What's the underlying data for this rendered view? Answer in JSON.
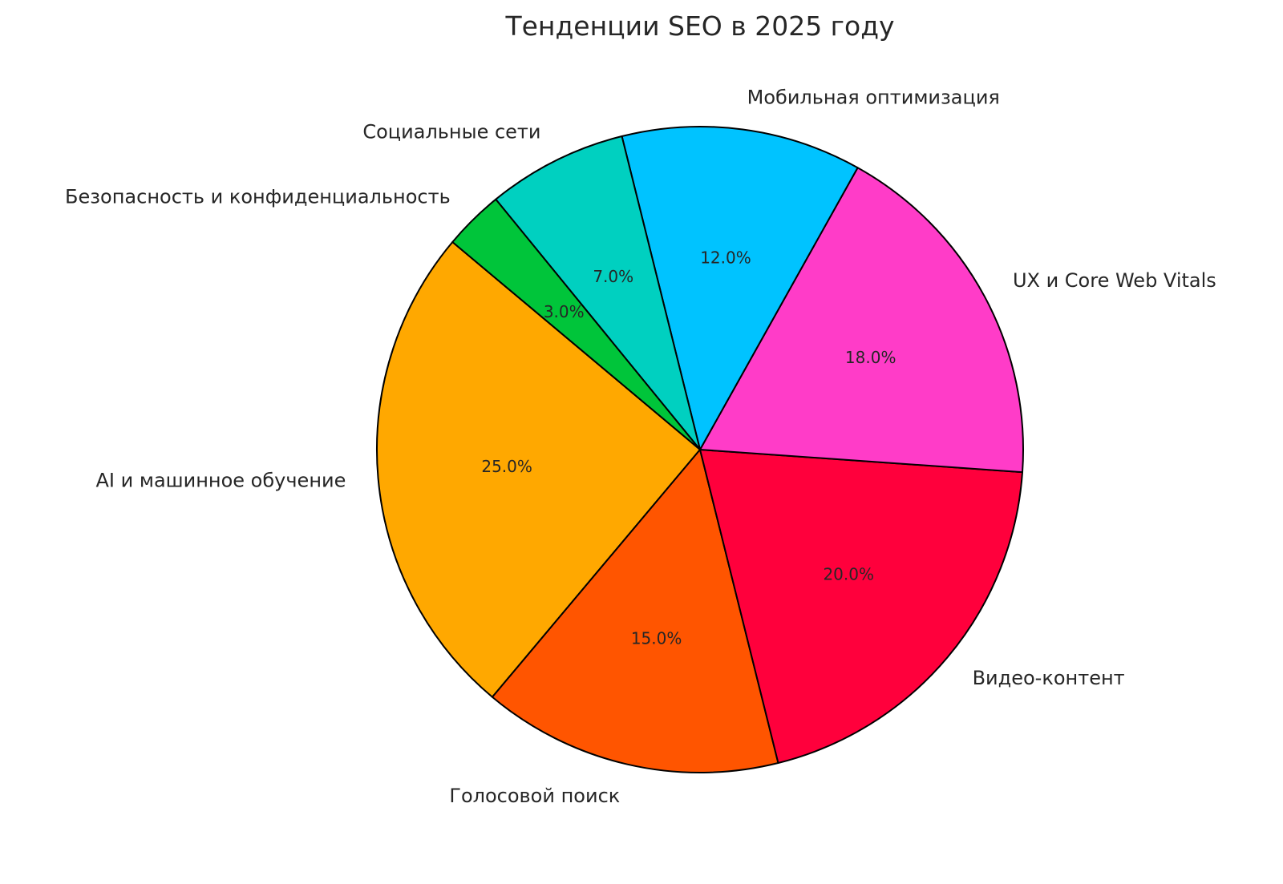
{
  "chart_data": {
    "type": "pie",
    "title": "Тенденции SEO в 2025 году",
    "start_angle_deg": 140,
    "direction": "counterclockwise",
    "label_format": "percent with one decimal",
    "categories": [
      "AI и машинное обучение",
      "Голосовой поиск",
      "Видео-контент",
      "UX и Core Web Vitals",
      "Мобильная оптимизация",
      "Социальные сети",
      "Безопасность и конфиденциальность"
    ],
    "values": [
      25,
      15,
      20,
      18,
      12,
      7,
      3
    ],
    "pct_labels": [
      "25.0%",
      "15.0%",
      "20.0%",
      "18.0%",
      "12.0%",
      "7.0%",
      "3.0%"
    ],
    "colors": [
      "#FFA800",
      "#FF5500",
      "#FF003C",
      "#FF3CC8",
      "#00C3FF",
      "#00D0C0",
      "#00C53A"
    ],
    "edge_color": "#000000"
  }
}
